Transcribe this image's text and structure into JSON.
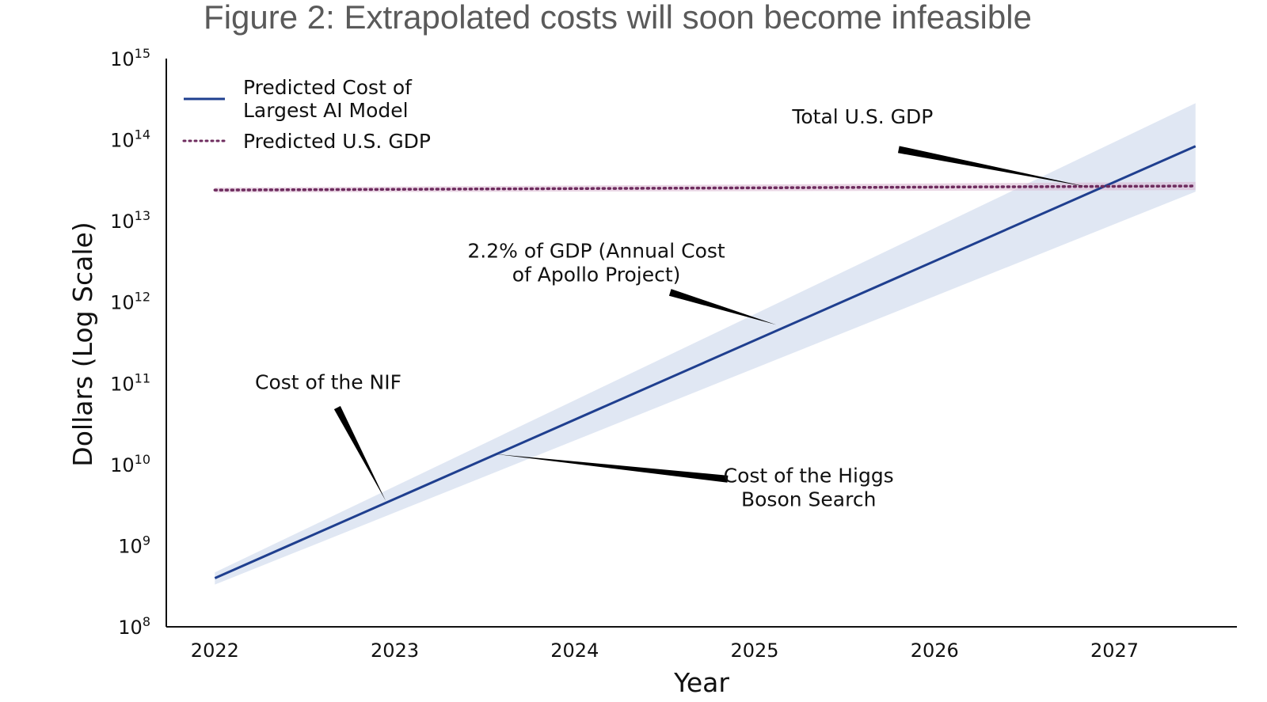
{
  "chart_data": {
    "type": "line",
    "title": "Figure 2: Extrapolated costs will soon become infeasible",
    "xlabel": "Year",
    "ylabel": "Dollars (Log Scale)",
    "yscale": "log",
    "xlim": [
      2021.73,
      2027.68
    ],
    "ylim": [
      100000000,
      1000000000000000
    ],
    "x_ticks": [
      "2022",
      "2023",
      "2024",
      "2025",
      "2026",
      "2027"
    ],
    "y_ticks": [
      {
        "base": "10",
        "exp": "8",
        "value": 100000000
      },
      {
        "base": "10",
        "exp": "9",
        "value": 1000000000
      },
      {
        "base": "10",
        "exp": "10",
        "value": 10000000000
      },
      {
        "base": "10",
        "exp": "11",
        "value": 100000000000
      },
      {
        "base": "10",
        "exp": "12",
        "value": 1000000000000
      },
      {
        "base": "10",
        "exp": "13",
        "value": 10000000000000
      },
      {
        "base": "10",
        "exp": "14",
        "value": 100000000000000
      },
      {
        "base": "10",
        "exp": "15",
        "value": 1000000000000000
      }
    ],
    "legend_position": "top-left",
    "series": [
      {
        "name": "Predicted Cost of Largest AI Model",
        "legend_lines": [
          "Predicted Cost of",
          "Largest AI Model"
        ],
        "style": "solid",
        "color": "#1f3f8f",
        "band_color": "#c7d3ea",
        "x": [
          2022.0,
          2027.45
        ],
        "log10_y": [
          8.6,
          13.92
        ],
        "band_lower_log10": [
          8.52,
          13.36
        ],
        "band_upper_log10": [
          8.67,
          14.45
        ]
      },
      {
        "name": "Predicted U.S. GDP",
        "legend_lines": [
          "Predicted U.S. GDP"
        ],
        "style": "dotted",
        "color": "#6e2c5e",
        "band_color": "#d9b6cf",
        "x": [
          2022.0,
          2027.45
        ],
        "log10_y": [
          13.38,
          13.43
        ],
        "band_lower_log10": [
          13.35,
          13.38
        ],
        "band_upper_log10": [
          13.41,
          13.48
        ]
      }
    ],
    "annotations": [
      {
        "name": "nif",
        "lines": [
          "Cost of the NIF"
        ],
        "text_x": 2022.63,
        "text_log10_y": 10.93,
        "point_x": 2022.95,
        "point_log10_y": 9.55,
        "arrow_start_x": 2022.68,
        "arrow_start_log10_y": 10.7,
        "anchor": "middle"
      },
      {
        "name": "higgs",
        "lines": [
          "Cost of the Higgs",
          "Boson Search"
        ],
        "text_x": 2025.3,
        "text_log10_y": 9.78,
        "point_x": 2023.55,
        "point_log10_y": 10.13,
        "arrow_start_x": 2024.85,
        "arrow_start_log10_y": 9.82,
        "anchor": "middle"
      },
      {
        "name": "apollo",
        "lines": [
          "2.2% of GDP (Annual Cost",
          "of Apollo Project)"
        ],
        "text_x": 2024.12,
        "text_log10_y": 12.55,
        "point_x": 2025.12,
        "point_log10_y": 11.72,
        "arrow_start_x": 2024.53,
        "arrow_start_log10_y": 12.12,
        "anchor": "middle"
      },
      {
        "name": "gdp",
        "lines": [
          "Total U.S. GDP"
        ],
        "text_x": 2025.6,
        "text_log10_y": 14.2,
        "point_x": 2026.85,
        "point_log10_y": 13.42,
        "arrow_start_x": 2025.8,
        "arrow_start_log10_y": 13.88,
        "anchor": "middle"
      }
    ]
  }
}
